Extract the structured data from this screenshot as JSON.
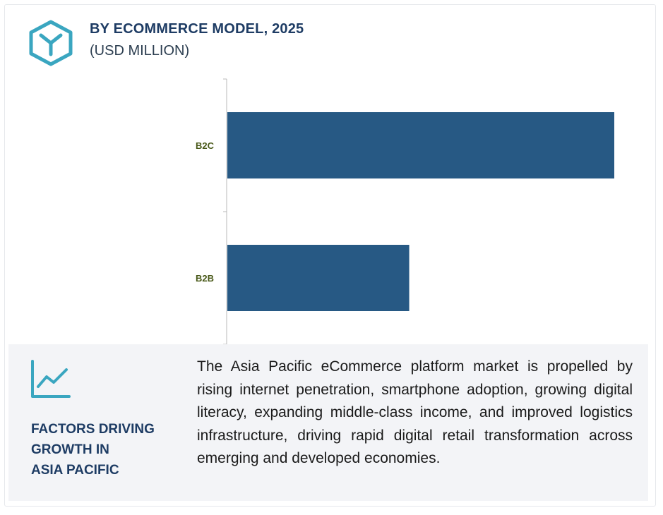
{
  "header": {
    "title": "BY ECOMMERCE MODEL, 2025",
    "subtitle": "(USD MILLION)",
    "logo_icon": "hexagon-y-logo-icon"
  },
  "colors": {
    "bar": "#275984",
    "title": "#1e3c64",
    "accent": "#3aa6c0",
    "panel": "#f3f4f7"
  },
  "chart_data": {
    "type": "bar",
    "orientation": "horizontal",
    "categories": [
      "B2C",
      "B2B"
    ],
    "values": [
      100,
      47
    ],
    "title": "BY ECOMMERCE MODEL, 2025",
    "subtitle": "(USD MILLION)",
    "xlabel": "",
    "ylabel": "",
    "xlim": [
      0,
      100
    ],
    "grid": false,
    "legend": "none"
  },
  "factors": {
    "icon": "trend-line-icon",
    "heading_lines": [
      "FACTORS DRIVING",
      "GROWTH IN",
      "ASIA PACIFIC"
    ],
    "description": "The Asia Pacific eCommerce platform market is propelled by rising internet penetration, smartphone adoption, growing digital literacy, expanding middle-class income, and improved logistics infrastructure, driving rapid digital retail transformation across emerging and developed economies."
  }
}
